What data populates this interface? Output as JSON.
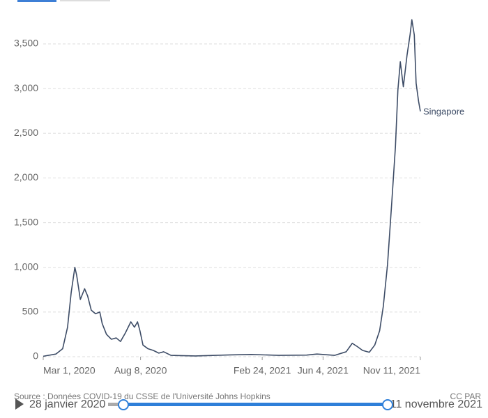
{
  "chart_data": {
    "type": "line",
    "x": [
      "2020-03-01",
      "2020-03-22",
      "2020-04-02",
      "2020-04-10",
      "2020-04-16",
      "2020-04-22",
      "2020-04-25",
      "2020-05-01",
      "2020-05-08",
      "2020-05-13",
      "2020-05-19",
      "2020-05-26",
      "2020-06-02",
      "2020-06-06",
      "2020-06-13",
      "2020-06-21",
      "2020-06-29",
      "2020-07-06",
      "2020-07-14",
      "2020-07-23",
      "2020-07-29",
      "2020-08-03",
      "2020-08-07",
      "2020-08-12",
      "2020-08-20",
      "2020-08-29",
      "2020-09-07",
      "2020-09-15",
      "2020-09-27",
      "2020-11-06",
      "2021-01-02",
      "2021-02-06",
      "2021-03-23",
      "2021-05-08",
      "2021-05-25",
      "2021-06-23",
      "2021-07-12",
      "2021-07-22",
      "2021-07-30",
      "2021-08-08",
      "2021-08-19",
      "2021-08-28",
      "2021-09-05",
      "2021-09-11",
      "2021-09-18",
      "2021-09-25",
      "2021-10-01",
      "2021-10-05",
      "2021-10-09",
      "2021-10-14",
      "2021-10-20",
      "2021-10-25",
      "2021-10-28",
      "2021-11-01",
      "2021-11-04",
      "2021-11-08",
      "2021-11-11"
    ],
    "series": [
      {
        "name": "Singapore",
        "color": "#3d4c66",
        "values": [
          5,
          30,
          90,
          330,
          720,
          1000,
          910,
          640,
          760,
          680,
          520,
          480,
          500,
          370,
          250,
          195,
          210,
          170,
          265,
          390,
          330,
          390,
          290,
          130,
          90,
          70,
          40,
          55,
          15,
          8,
          20,
          25,
          15,
          18,
          30,
          15,
          55,
          150,
          115,
          70,
          50,
          130,
          290,
          560,
          1030,
          1730,
          2350,
          2980,
          3300,
          3020,
          3370,
          3600,
          3770,
          3600,
          3060,
          2860,
          2745
        ]
      }
    ],
    "xlim": [
      "2020-03-01",
      "2021-11-11"
    ],
    "xticks": [
      {
        "value": "2020-03-01",
        "label": "Mar 1, 2020"
      },
      {
        "value": "2020-08-08",
        "label": "Aug 8, 2020"
      },
      {
        "value": "2021-02-24",
        "label": "Feb 24, 2021"
      },
      {
        "value": "2021-06-04",
        "label": "Jun 4, 2021"
      },
      {
        "value": "2021-11-11",
        "label": "Nov 11, 2021"
      }
    ],
    "ylim": [
      0,
      3800
    ],
    "yticks": [
      0,
      500,
      {
        "value": 1000,
        "label": "1,000"
      },
      {
        "value": 1500,
        "label": "1,500"
      },
      {
        "value": 2000,
        "label": "2,000"
      },
      {
        "value": 2500,
        "label": "2,500"
      },
      {
        "value": 3000,
        "label": "3,000"
      },
      {
        "value": 3500,
        "label": "3,500"
      }
    ],
    "grid": true,
    "source": "Source : Données COVID-19 du CSSE de l'Université Johns Hopkins",
    "license": "CC PAR"
  },
  "timeline": {
    "start": "28 janvier 2020",
    "end": "11 novembre 2021"
  }
}
